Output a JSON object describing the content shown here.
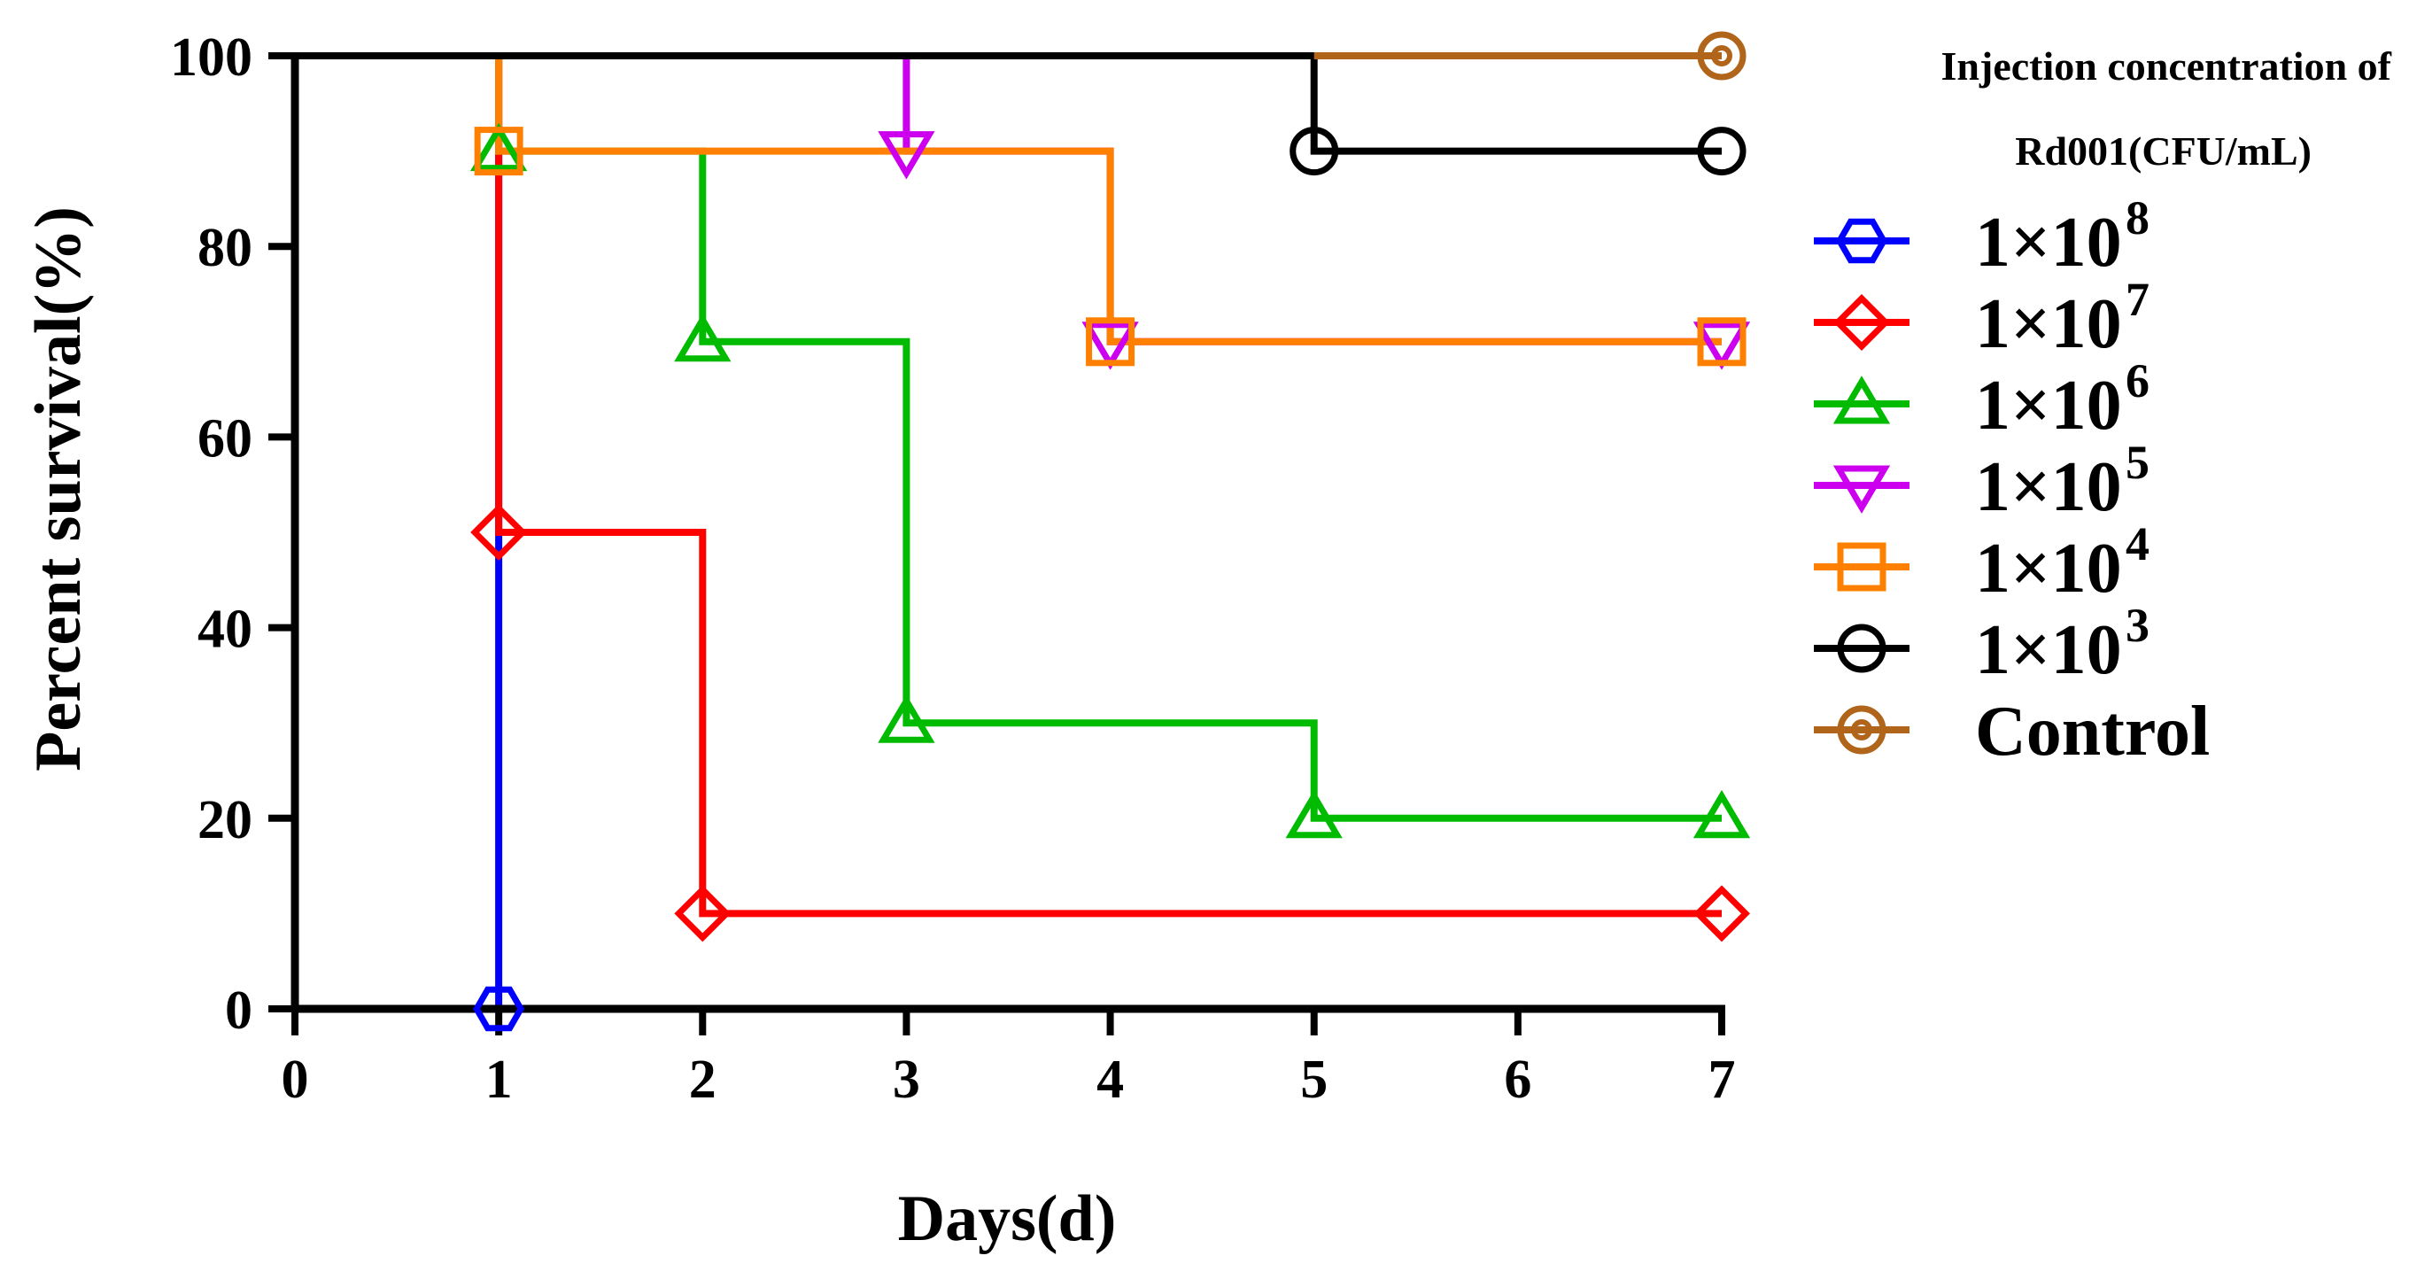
{
  "chart_data": {
    "type": "line",
    "title": "",
    "xlabel": "Days(d)",
    "ylabel": "Percent survival(%)",
    "xlim": [
      0,
      7
    ],
    "ylim": [
      0,
      100
    ],
    "x_ticks": [
      0,
      1,
      2,
      3,
      4,
      5,
      6,
      7
    ],
    "y_ticks": [
      0,
      20,
      40,
      60,
      80,
      100
    ],
    "grid": false,
    "legend": {
      "title_line1": "Injection concentration of",
      "title_line2": "Rd001(CFU/mL)",
      "placement": "right"
    },
    "series": [
      {
        "name": "1×10",
        "exp": "8",
        "color": "#0000ff",
        "marker": "hexagon",
        "x": [
          0,
          1,
          1
        ],
        "y": [
          100,
          100,
          0
        ],
        "marked": [
          [
            1,
            0
          ]
        ]
      },
      {
        "name": "1×10",
        "exp": "7",
        "color": "#ff0000",
        "marker": "diamond",
        "x": [
          0,
          1,
          1,
          2,
          2,
          7
        ],
        "y": [
          100,
          100,
          50,
          50,
          10,
          10
        ],
        "marked": [
          [
            1,
            50
          ],
          [
            2,
            10
          ],
          [
            7,
            10
          ]
        ]
      },
      {
        "name": "1×10",
        "exp": "6",
        "color": "#00bb00",
        "marker": "triangle-up",
        "x": [
          0,
          1,
          1,
          2,
          2,
          3,
          3,
          5,
          5,
          7
        ],
        "y": [
          100,
          100,
          90,
          90,
          70,
          70,
          30,
          30,
          20,
          20
        ],
        "marked": [
          [
            1,
            90
          ],
          [
            2,
            70
          ],
          [
            3,
            30
          ],
          [
            5,
            20
          ],
          [
            7,
            20
          ]
        ]
      },
      {
        "name": "1×10",
        "exp": "5",
        "color": "#cc00ee",
        "marker": "triangle-down",
        "x": [
          0,
          3,
          3,
          4,
          4,
          7
        ],
        "y": [
          100,
          100,
          90,
          90,
          70,
          70
        ],
        "marked": [
          [
            3,
            90
          ],
          [
            4,
            70
          ],
          [
            7,
            70
          ]
        ]
      },
      {
        "name": "1×10",
        "exp": "4",
        "color": "#ff8000",
        "marker": "square",
        "x": [
          0,
          1,
          1,
          4,
          4,
          7
        ],
        "y": [
          100,
          100,
          90,
          90,
          70,
          70
        ],
        "marked": [
          [
            1,
            90
          ],
          [
            4,
            70
          ],
          [
            7,
            70
          ]
        ]
      },
      {
        "name": "1×10",
        "exp": "3",
        "color": "#000000",
        "marker": "circle",
        "x": [
          0,
          5,
          5,
          7
        ],
        "y": [
          100,
          100,
          90,
          90
        ],
        "marked": [
          [
            5,
            90
          ],
          [
            7,
            90
          ]
        ]
      },
      {
        "name": "Control",
        "exp": "",
        "color": "#b0651a",
        "marker": "circle-dot",
        "x": [
          5,
          7
        ],
        "y": [
          100,
          100
        ],
        "marked": [
          [
            7,
            100
          ]
        ]
      }
    ]
  }
}
